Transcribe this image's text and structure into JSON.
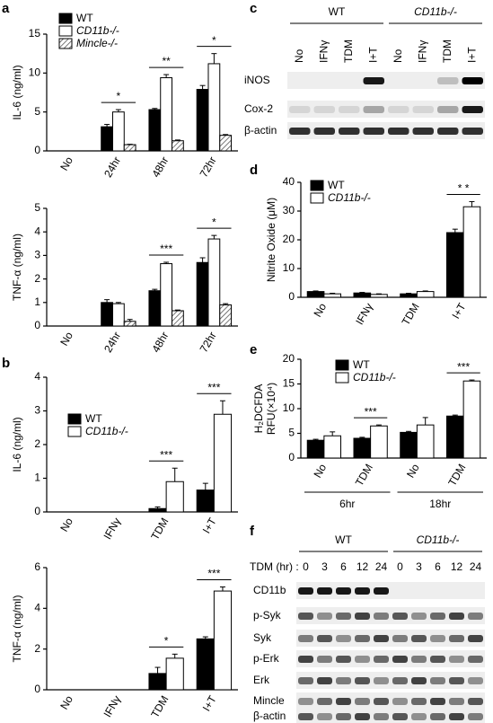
{
  "chart_data": [
    {
      "type": "bar",
      "panel": "a",
      "ylabel": [
        "IL-6 (ng/ml)"
      ],
      "categories": [
        "No",
        "24hr",
        "48hr",
        "72hr"
      ],
      "ylim": [
        0,
        15
      ],
      "yticks": [
        0,
        5,
        10,
        15
      ],
      "legend": true,
      "series": [
        {
          "name": "WT",
          "color": "#000000",
          "values": [
            0,
            3.1,
            5.3,
            7.9
          ],
          "errors": [
            0,
            0.3,
            0.15,
            0.5
          ]
        },
        {
          "name": "CD11b-/-",
          "color": "#ffffff",
          "values": [
            0,
            5.0,
            9.4,
            11.2
          ],
          "errors": [
            0,
            0.3,
            0.4,
            1.3
          ]
        },
        {
          "name": "Mincle-/-",
          "color": "hatch",
          "values": [
            0,
            0.8,
            1.3,
            2.0
          ],
          "errors": [
            0,
            0.05,
            0.1,
            0.1
          ]
        }
      ],
      "significance": [
        {
          "category": 1,
          "label": "*"
        },
        {
          "category": 2,
          "label": "**"
        },
        {
          "category": 3,
          "label": "*"
        }
      ]
    },
    {
      "type": "bar",
      "ylabel": [
        "TNF-α (ng/ml)"
      ],
      "categories": [
        "No",
        "24hr",
        "48hr",
        "72hr"
      ],
      "ylim": [
        0,
        5
      ],
      "yticks": [
        0,
        1,
        2,
        3,
        4,
        5
      ],
      "legend": false,
      "series": [
        {
          "name": "WT",
          "color": "#000000",
          "values": [
            0,
            1.0,
            1.5,
            2.7
          ],
          "errors": [
            0,
            0.12,
            0.06,
            0.2
          ]
        },
        {
          "name": "CD11b-/-",
          "color": "#ffffff",
          "values": [
            0,
            0.95,
            2.65,
            3.7
          ],
          "errors": [
            0,
            0.05,
            0.06,
            0.15
          ]
        },
        {
          "name": "Mincle-/-",
          "color": "hatch",
          "values": [
            0,
            0.2,
            0.65,
            0.9
          ],
          "errors": [
            0,
            0.08,
            0.03,
            0.05
          ]
        }
      ],
      "significance": [
        {
          "category": 2,
          "label": "***"
        },
        {
          "category": 3,
          "label": "*"
        }
      ]
    },
    {
      "type": "bar",
      "panel": "b",
      "ylabel": [
        "IL-6 (ng/ml)"
      ],
      "categories": [
        "No",
        "IFNγ",
        "TDM",
        "I+T"
      ],
      "ylim": [
        0,
        4
      ],
      "yticks": [
        0,
        1,
        2,
        3,
        4
      ],
      "legend": true,
      "series": [
        {
          "name": "WT",
          "color": "#000000",
          "values": [
            0,
            0,
            0.1,
            0.65
          ],
          "errors": [
            0,
            0,
            0.05,
            0.2
          ]
        },
        {
          "name": "CD11b-/-",
          "color": "#ffffff",
          "values": [
            0,
            0,
            0.9,
            2.9
          ],
          "errors": [
            0,
            0,
            0.4,
            0.4
          ]
        }
      ],
      "significance": [
        {
          "category": 2,
          "label": "***"
        },
        {
          "category": 3,
          "label": "***"
        }
      ]
    },
    {
      "type": "bar",
      "ylabel": [
        "TNF-α (ng/ml)"
      ],
      "categories": [
        "No",
        "IFNγ",
        "TDM",
        "I+T"
      ],
      "ylim": [
        0,
        6
      ],
      "yticks": [
        0,
        2,
        4,
        6
      ],
      "legend": false,
      "series": [
        {
          "name": "WT",
          "color": "#000000",
          "values": [
            0,
            0,
            0.8,
            2.5
          ],
          "errors": [
            0,
            0,
            0.3,
            0.1
          ]
        },
        {
          "name": "CD11b-/-",
          "color": "#ffffff",
          "values": [
            0,
            0,
            1.55,
            4.85
          ],
          "errors": [
            0,
            0,
            0.2,
            0.2
          ]
        }
      ],
      "significance": [
        {
          "category": 2,
          "label": "*"
        },
        {
          "category": 3,
          "label": "***"
        }
      ]
    },
    {
      "type": "bar",
      "panel": "d",
      "ylabel": [
        "Nitrite Oxide (μM)"
      ],
      "categories": [
        "No",
        "IFNγ",
        "TDM",
        "I+T"
      ],
      "ylim": [
        0,
        40
      ],
      "yticks": [
        0,
        10,
        20,
        30,
        40
      ],
      "legend": true,
      "series": [
        {
          "name": "WT",
          "color": "#000000",
          "values": [
            2,
            1.5,
            1.2,
            22.5
          ],
          "errors": [
            0.2,
            0.2,
            0.2,
            1.2
          ]
        },
        {
          "name": "CD11b-/-",
          "color": "#ffffff",
          "values": [
            1.2,
            1,
            2,
            31.5
          ],
          "errors": [
            0.2,
            0.2,
            0.2,
            1.8
          ]
        }
      ],
      "significance": [
        {
          "category": 3,
          "label": "* *"
        }
      ]
    },
    {
      "type": "bar",
      "panel": "e",
      "ylabel": [
        "H₂DCFDA",
        "RFU(×10⁴)"
      ],
      "categories": [
        "No",
        "TDM",
        "No",
        "TDM"
      ],
      "ylim": [
        0,
        20
      ],
      "yticks": [
        0,
        5,
        10,
        15,
        20
      ],
      "legend": true,
      "series": [
        {
          "name": "WT",
          "color": "#000000",
          "values": [
            3.6,
            4,
            5.2,
            8.5
          ],
          "errors": [
            0.2,
            0.2,
            0.2,
            0.2
          ]
        },
        {
          "name": "CD11b-/-",
          "color": "#ffffff",
          "values": [
            4.5,
            6.5,
            6.7,
            15.6
          ],
          "errors": [
            0.8,
            0.2,
            1.5,
            0.2
          ]
        }
      ],
      "significance": [
        {
          "category": 1,
          "label": "***"
        },
        {
          "category": 3,
          "label": "***"
        }
      ],
      "groups": [
        {
          "label": "6hr",
          "categories": [
            0,
            1
          ]
        },
        {
          "label": "18hr",
          "categories": [
            2,
            3
          ]
        }
      ]
    }
  ],
  "blots": [
    {
      "panel": "c",
      "groups": [
        "WT",
        "CD11b-/-"
      ],
      "lanes": [
        "No",
        "IFNγ",
        "TDM",
        "I+T",
        "No",
        "IFNγ",
        "TDM",
        "I+T"
      ],
      "rows": [
        "iNOS",
        "Cox-2",
        "β-actin"
      ]
    },
    {
      "panel": "f",
      "lane_title": "TDM (hr) :",
      "groups": [
        "WT",
        "CD11b-/-"
      ],
      "lanes": [
        "0",
        "3",
        "6",
        "12",
        "24",
        "0",
        "3",
        "6",
        "12",
        "24"
      ],
      "rows": [
        "CD11b",
        "p-Syk",
        "Syk",
        "p-Erk",
        "Erk",
        "Mincle",
        "β-actin"
      ]
    }
  ]
}
